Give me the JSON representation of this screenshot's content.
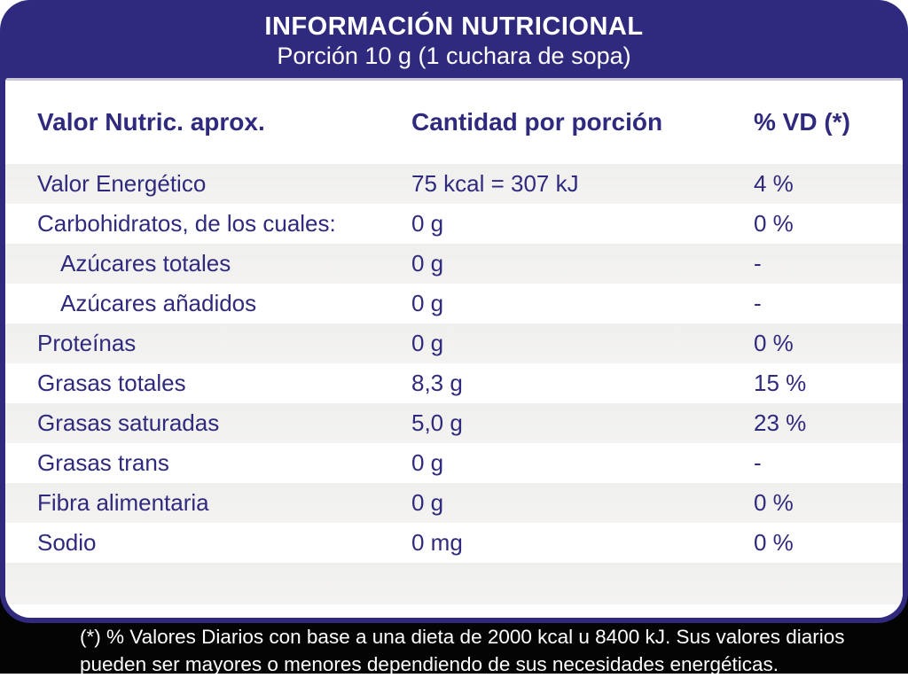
{
  "colors": {
    "accent_indigo": "#2f2a7d",
    "panel_bg": "#ffffff",
    "row_shaded": "#f1f1ef",
    "footer_bg": "#040404",
    "footer_text": "#ffffff"
  },
  "header": {
    "title": "INFORMACIÓN NUTRICIONAL",
    "subtitle": "Porción 10 g (1 cuchara de sopa)"
  },
  "table": {
    "columns": [
      "Valor Nutric. aprox.",
      "Cantidad por porción",
      "% VD (*)"
    ],
    "rows": [
      {
        "name": "Valor Energético",
        "amount": "75 kcal = 307 kJ",
        "vd": "4 %",
        "indent": false,
        "shaded": true
      },
      {
        "name": "Carbohidratos, de los cuales:",
        "amount": "0 g",
        "vd": "0 %",
        "indent": false,
        "shaded": false
      },
      {
        "name": "Azúcares totales",
        "amount": "0 g",
        "vd": "-",
        "indent": true,
        "shaded": true
      },
      {
        "name": "Azúcares añadidos",
        "amount": "0 g",
        "vd": "-",
        "indent": true,
        "shaded": false
      },
      {
        "name": "Proteínas",
        "amount": "0 g",
        "vd": "0 %",
        "indent": false,
        "shaded": true
      },
      {
        "name": "Grasas totales",
        "amount": "8,3 g",
        "vd": "15 %",
        "indent": false,
        "shaded": false
      },
      {
        "name": "Grasas saturadas",
        "amount": "5,0 g",
        "vd": "23 %",
        "indent": false,
        "shaded": true
      },
      {
        "name": "Grasas trans",
        "amount": "0 g",
        "vd": "-",
        "indent": false,
        "shaded": false
      },
      {
        "name": "Fibra alimentaria",
        "amount": "0 g",
        "vd": "0 %",
        "indent": false,
        "shaded": true
      },
      {
        "name": "Sodio",
        "amount": "0 mg",
        "vd": "0 %",
        "indent": false,
        "shaded": false
      }
    ]
  },
  "footnote": {
    "line1": "(*) % Valores Diarios con base a una dieta de 2000 kcal u 8400 kJ. Sus valores diarios",
    "line2": "pueden ser mayores o menores dependiendo de sus necesidades energéticas."
  }
}
